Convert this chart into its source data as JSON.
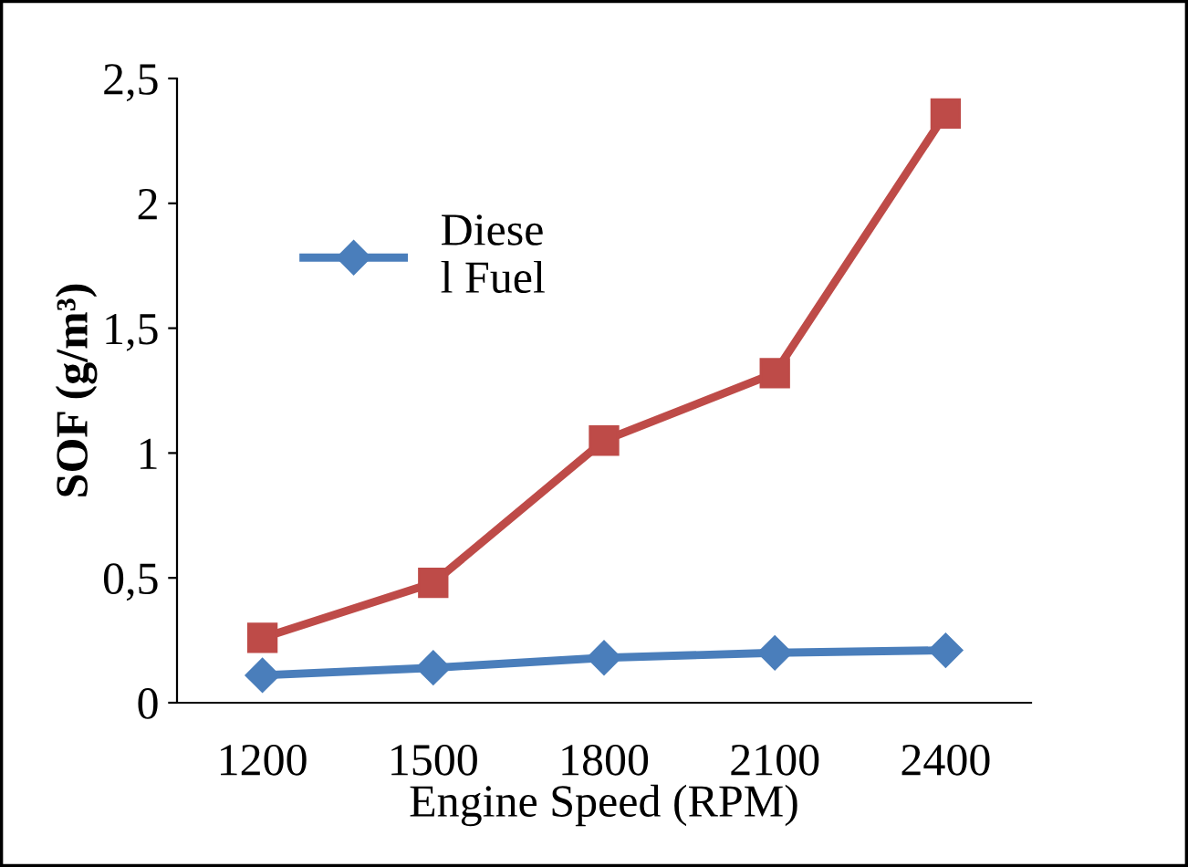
{
  "chart_data": {
    "type": "line",
    "categories": [
      "1200",
      "1500",
      "1800",
      "2100",
      "2400"
    ],
    "series": [
      {
        "name": "Diese\nl Fuel",
        "color": "#4a7ebb",
        "values": [
          0.11,
          0.14,
          0.18,
          0.2,
          0.21
        ],
        "marker": "diamond"
      },
      {
        "color": "#be4b48",
        "values": [
          0.26,
          0.48,
          1.05,
          1.32,
          2.36
        ],
        "marker": "square"
      }
    ],
    "xlabel": "Engine Speed (RPM)",
    "ylabel": "SOF (g/m³)",
    "ylim": [
      0,
      2.5
    ],
    "yticks": [
      0,
      {
        "value": 0.5,
        "label": "0,5"
      },
      1,
      {
        "value": 1.5,
        "label": "1,5"
      },
      2,
      {
        "value": 2.5,
        "label": "2,5"
      }
    ],
    "grid": false,
    "legend": "top left",
    "line_style": "solid"
  }
}
